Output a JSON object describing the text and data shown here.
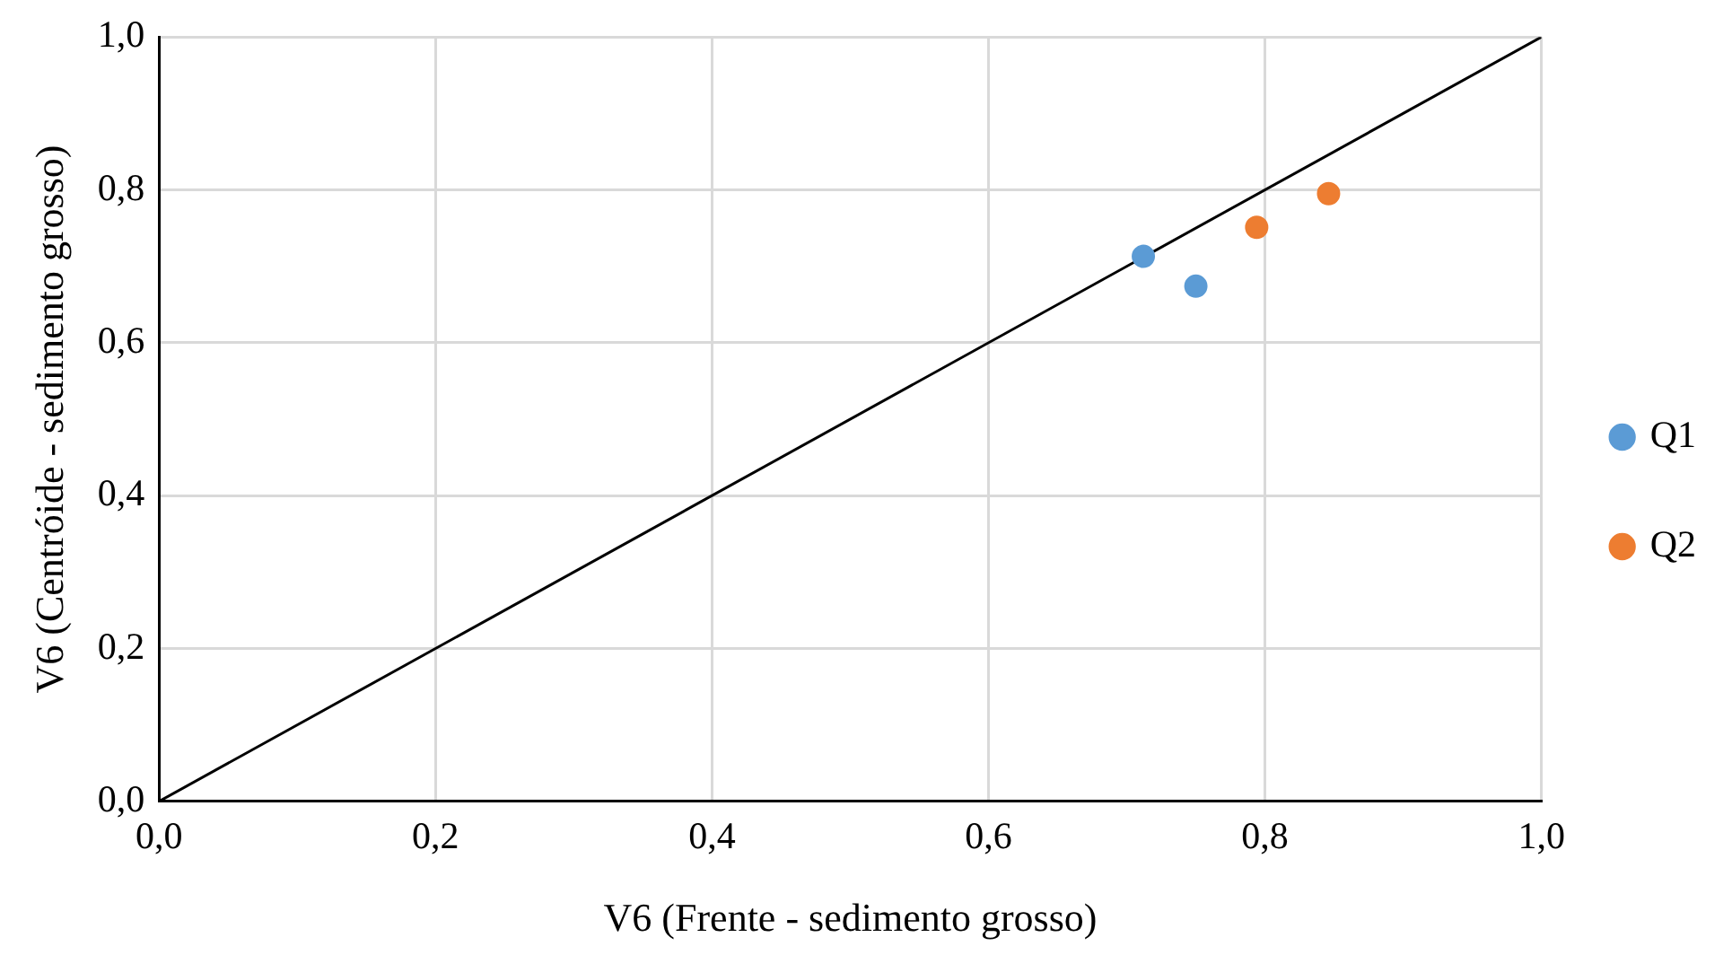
{
  "chart_data": {
    "type": "scatter",
    "xlabel": "V6 (Frente - sedimento grosso)",
    "ylabel": "V6 (Centróide - sedimento grosso)",
    "xlim": [
      0,
      1
    ],
    "ylim": [
      0,
      1
    ],
    "xticks": [
      {
        "value": 0,
        "label": "0,0"
      },
      {
        "value": 0.2,
        "label": "0,2"
      },
      {
        "value": 0.4,
        "label": "0,4"
      },
      {
        "value": 0.6,
        "label": "0,6"
      },
      {
        "value": 0.8,
        "label": "0,8"
      },
      {
        "value": 1,
        "label": "1,0"
      }
    ],
    "yticks": [
      {
        "value": 0,
        "label": "0,0"
      },
      {
        "value": 0.2,
        "label": "0,2"
      },
      {
        "value": 0.4,
        "label": "0,4"
      },
      {
        "value": 0.6,
        "label": "0,6"
      },
      {
        "value": 0.8,
        "label": "0,8"
      },
      {
        "value": 1,
        "label": "1,0"
      }
    ],
    "grid": true,
    "legend": "right",
    "series": [
      {
        "name": "Q1",
        "marker": "circle",
        "color": "#5b9bd5",
        "x": [
          0.712,
          0.75
        ],
        "values": [
          0.713,
          0.674
        ]
      },
      {
        "name": "Q2",
        "marker": "circle",
        "color": "#ed7d31",
        "x": [
          0.794,
          0.846
        ],
        "values": [
          0.751,
          0.795
        ]
      },
      {
        "type": "line",
        "marker": "none",
        "color": "#000000",
        "x": [
          0,
          1
        ],
        "values": [
          0,
          1
        ]
      }
    ]
  }
}
